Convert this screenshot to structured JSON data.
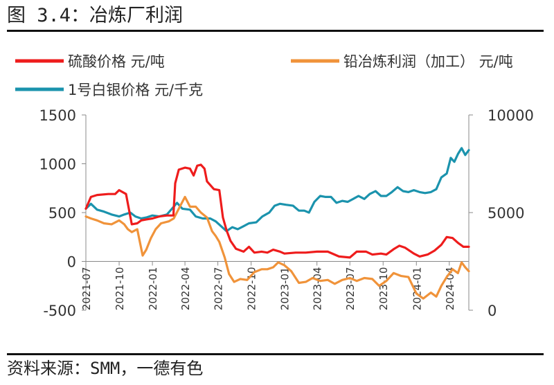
{
  "header": {
    "figure_title": "图 3.4：冶炼厂利润"
  },
  "footer": {
    "source": "资料来源：SMM，一德有色"
  },
  "chart_data": {
    "type": "line",
    "title": "",
    "xlabel": "",
    "ylabel": "",
    "y2label": "",
    "x_ticks": [
      "2021-07",
      "2021-10",
      "2022-01",
      "2022-04",
      "2022-07",
      "2022-10",
      "2023-01",
      "2023-04",
      "2023-07",
      "2023-10",
      "2024-01",
      "2024-04"
    ],
    "x_range": [
      "2021-07-01",
      "2024-05-25"
    ],
    "ylim": [
      -500,
      1500
    ],
    "yticks": [
      -500,
      0,
      500,
      1000,
      1500
    ],
    "y2lim": [
      0,
      10000
    ],
    "y2ticks": [
      0,
      5000,
      10000
    ],
    "grid": false,
    "legend_position": "top",
    "series": [
      {
        "name": "硫酸价格 元/吨",
        "axis": "left",
        "color": "#ee1c1c",
        "points": [
          [
            "2021-07-01",
            540
          ],
          [
            "2021-07-15",
            660
          ],
          [
            "2021-08-01",
            680
          ],
          [
            "2021-09-01",
            690
          ],
          [
            "2021-09-20",
            690
          ],
          [
            "2021-10-01",
            730
          ],
          [
            "2021-10-20",
            690
          ],
          [
            "2021-11-05",
            380
          ],
          [
            "2021-11-20",
            390
          ],
          [
            "2021-12-01",
            420
          ],
          [
            "2021-12-15",
            430
          ],
          [
            "2022-01-01",
            440
          ],
          [
            "2022-01-20",
            460
          ],
          [
            "2022-02-10",
            470
          ],
          [
            "2022-02-28",
            470
          ],
          [
            "2022-03-05",
            800
          ],
          [
            "2022-03-15",
            940
          ],
          [
            "2022-04-01",
            960
          ],
          [
            "2022-04-15",
            950
          ],
          [
            "2022-04-25",
            880
          ],
          [
            "2022-05-05",
            980
          ],
          [
            "2022-05-15",
            990
          ],
          [
            "2022-05-25",
            950
          ],
          [
            "2022-06-01",
            820
          ],
          [
            "2022-06-20",
            740
          ],
          [
            "2022-07-05",
            730
          ],
          [
            "2022-07-15",
            450
          ],
          [
            "2022-07-25",
            320
          ],
          [
            "2022-08-05",
            210
          ],
          [
            "2022-08-20",
            130
          ],
          [
            "2022-09-10",
            100
          ],
          [
            "2022-09-25",
            150
          ],
          [
            "2022-10-10",
            90
          ],
          [
            "2022-10-30",
            100
          ],
          [
            "2022-11-15",
            90
          ],
          [
            "2022-12-01",
            120
          ],
          [
            "2022-12-20",
            100
          ],
          [
            "2023-01-01",
            80
          ],
          [
            "2023-02-01",
            90
          ],
          [
            "2023-03-01",
            90
          ],
          [
            "2023-04-01",
            100
          ],
          [
            "2023-05-01",
            100
          ],
          [
            "2023-06-01",
            50
          ],
          [
            "2023-07-01",
            40
          ],
          [
            "2023-07-20",
            100
          ],
          [
            "2023-08-15",
            100
          ],
          [
            "2023-09-01",
            70
          ],
          [
            "2023-09-25",
            80
          ],
          [
            "2023-10-10",
            70
          ],
          [
            "2023-11-01",
            130
          ],
          [
            "2023-11-15",
            160
          ],
          [
            "2023-12-01",
            140
          ],
          [
            "2023-12-25",
            80
          ],
          [
            "2024-01-10",
            50
          ],
          [
            "2024-02-01",
            70
          ],
          [
            "2024-02-20",
            110
          ],
          [
            "2024-03-10",
            170
          ],
          [
            "2024-03-25",
            250
          ],
          [
            "2024-04-10",
            240
          ],
          [
            "2024-04-25",
            190
          ],
          [
            "2024-05-10",
            150
          ],
          [
            "2024-05-25",
            150
          ]
        ]
      },
      {
        "name": "铅冶炼利润（加工） 元/吨",
        "axis": "left",
        "color": "#f0933a",
        "points": [
          [
            "2021-07-01",
            460
          ],
          [
            "2021-07-15",
            440
          ],
          [
            "2021-08-01",
            420
          ],
          [
            "2021-08-20",
            390
          ],
          [
            "2021-09-10",
            380
          ],
          [
            "2021-10-01",
            420
          ],
          [
            "2021-10-15",
            380
          ],
          [
            "2021-10-25",
            330
          ],
          [
            "2021-11-05",
            300
          ],
          [
            "2021-11-20",
            330
          ],
          [
            "2021-12-05",
            60
          ],
          [
            "2021-12-15",
            120
          ],
          [
            "2021-12-28",
            240
          ],
          [
            "2022-01-10",
            330
          ],
          [
            "2022-01-25",
            390
          ],
          [
            "2022-02-15",
            410
          ],
          [
            "2022-03-01",
            440
          ],
          [
            "2022-03-15",
            540
          ],
          [
            "2022-04-01",
            660
          ],
          [
            "2022-04-15",
            560
          ],
          [
            "2022-05-01",
            560
          ],
          [
            "2022-05-15",
            500
          ],
          [
            "2022-06-01",
            450
          ],
          [
            "2022-06-15",
            310
          ],
          [
            "2022-06-25",
            260
          ],
          [
            "2022-07-05",
            200
          ],
          [
            "2022-07-20",
            40
          ],
          [
            "2022-08-01",
            -130
          ],
          [
            "2022-08-15",
            -210
          ],
          [
            "2022-09-01",
            -180
          ],
          [
            "2022-09-20",
            -190
          ],
          [
            "2022-10-10",
            -110
          ],
          [
            "2022-10-30",
            -80
          ],
          [
            "2022-11-15",
            -80
          ],
          [
            "2022-12-01",
            -60
          ],
          [
            "2022-12-15",
            -10
          ],
          [
            "2023-01-01",
            -40
          ],
          [
            "2023-01-20",
            -100
          ],
          [
            "2023-02-10",
            -220
          ],
          [
            "2023-03-01",
            -210
          ],
          [
            "2023-03-20",
            -170
          ],
          [
            "2023-04-10",
            -200
          ],
          [
            "2023-05-01",
            -190
          ],
          [
            "2023-05-20",
            -230
          ],
          [
            "2023-06-10",
            -190
          ],
          [
            "2023-07-01",
            -170
          ],
          [
            "2023-07-20",
            -200
          ],
          [
            "2023-08-10",
            -170
          ],
          [
            "2023-09-01",
            -180
          ],
          [
            "2023-09-20",
            -250
          ],
          [
            "2023-10-10",
            -200
          ],
          [
            "2023-10-30",
            -120
          ],
          [
            "2023-11-20",
            -150
          ],
          [
            "2023-12-10",
            -160
          ],
          [
            "2024-01-01",
            -330
          ],
          [
            "2024-01-20",
            -380
          ],
          [
            "2024-02-10",
            -320
          ],
          [
            "2024-02-25",
            -360
          ],
          [
            "2024-03-10",
            -250
          ],
          [
            "2024-03-25",
            -160
          ],
          [
            "2024-04-10",
            -80
          ],
          [
            "2024-04-25",
            -120
          ],
          [
            "2024-05-05",
            -10
          ],
          [
            "2024-05-15",
            -60
          ],
          [
            "2024-05-25",
            -100
          ]
        ]
      },
      {
        "name": "1号白银价格 元/千克",
        "axis": "right",
        "color": "#1b93ad",
        "points": [
          [
            "2021-07-01",
            5200
          ],
          [
            "2021-07-15",
            5450
          ],
          [
            "2021-08-01",
            5150
          ],
          [
            "2021-08-20",
            5050
          ],
          [
            "2021-09-10",
            4900
          ],
          [
            "2021-10-01",
            4800
          ],
          [
            "2021-10-15",
            4900
          ],
          [
            "2021-11-01",
            5000
          ],
          [
            "2021-11-15",
            4800
          ],
          [
            "2021-12-01",
            4700
          ],
          [
            "2021-12-15",
            4750
          ],
          [
            "2022-01-01",
            4850
          ],
          [
            "2022-01-20",
            4800
          ],
          [
            "2022-02-10",
            4900
          ],
          [
            "2022-03-01",
            5300
          ],
          [
            "2022-03-10",
            5500
          ],
          [
            "2022-03-25",
            5200
          ],
          [
            "2022-04-15",
            5150
          ],
          [
            "2022-05-01",
            4800
          ],
          [
            "2022-05-20",
            4700
          ],
          [
            "2022-06-10",
            4700
          ],
          [
            "2022-06-25",
            4550
          ],
          [
            "2022-07-10",
            4300
          ],
          [
            "2022-07-25",
            4050
          ],
          [
            "2022-08-10",
            4250
          ],
          [
            "2022-08-25",
            4150
          ],
          [
            "2022-09-10",
            4300
          ],
          [
            "2022-09-25",
            4450
          ],
          [
            "2022-10-15",
            4500
          ],
          [
            "2022-11-01",
            4800
          ],
          [
            "2022-11-20",
            5000
          ],
          [
            "2022-12-05",
            5350
          ],
          [
            "2022-12-20",
            5450
          ],
          [
            "2023-01-05",
            5400
          ],
          [
            "2023-01-25",
            5350
          ],
          [
            "2023-02-10",
            5100
          ],
          [
            "2023-02-25",
            5100
          ],
          [
            "2023-03-10",
            5000
          ],
          [
            "2023-03-25",
            5550
          ],
          [
            "2023-04-10",
            5850
          ],
          [
            "2023-04-25",
            5800
          ],
          [
            "2023-05-10",
            5800
          ],
          [
            "2023-05-25",
            5500
          ],
          [
            "2023-06-10",
            5600
          ],
          [
            "2023-06-25",
            5550
          ],
          [
            "2023-07-10",
            5700
          ],
          [
            "2023-07-25",
            5850
          ],
          [
            "2023-08-10",
            5700
          ],
          [
            "2023-08-25",
            5950
          ],
          [
            "2023-09-10",
            6100
          ],
          [
            "2023-09-25",
            5850
          ],
          [
            "2023-10-10",
            5850
          ],
          [
            "2023-10-25",
            6050
          ],
          [
            "2023-11-10",
            6300
          ],
          [
            "2023-11-25",
            6100
          ],
          [
            "2023-12-10",
            6050
          ],
          [
            "2023-12-25",
            6150
          ],
          [
            "2024-01-10",
            6050
          ],
          [
            "2024-01-25",
            6000
          ],
          [
            "2024-02-10",
            6050
          ],
          [
            "2024-02-25",
            6200
          ],
          [
            "2024-03-10",
            6800
          ],
          [
            "2024-03-25",
            7000
          ],
          [
            "2024-04-05",
            7800
          ],
          [
            "2024-04-15",
            7600
          ],
          [
            "2024-04-25",
            8000
          ],
          [
            "2024-05-05",
            8300
          ],
          [
            "2024-05-15",
            7950
          ],
          [
            "2024-05-25",
            8200
          ]
        ]
      }
    ]
  }
}
